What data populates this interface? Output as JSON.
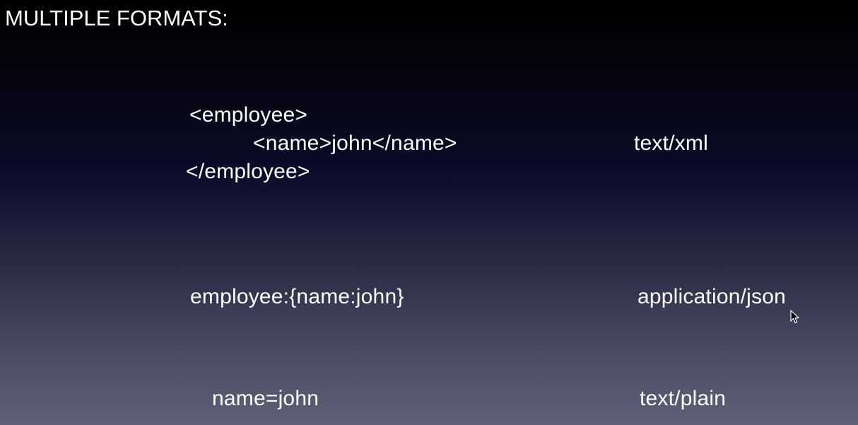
{
  "slide": {
    "title": "MULTIPLE FORMATS:"
  },
  "formats": {
    "xml": {
      "line1": "<employee>",
      "line2": "<name>john</name>",
      "line3": "</employee>",
      "type": "text/xml"
    },
    "json": {
      "example": "employee:{name:john}",
      "type": "application/json"
    },
    "plain": {
      "example": "name=john",
      "type": "text/plain"
    }
  },
  "colors": {
    "text": "#ffffff",
    "background_top": "#000000",
    "background_bottom": "#5f5f78"
  },
  "icons": {
    "pointer": "mouse-pointer-icon"
  }
}
